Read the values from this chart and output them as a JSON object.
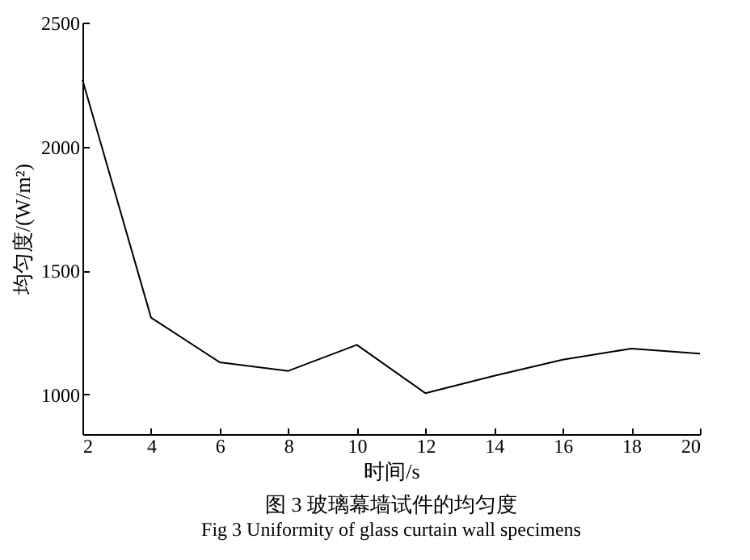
{
  "chart_data": {
    "type": "line",
    "title": "图 3 玻璃幕墙试件的均匀度",
    "subtitle": "Fig 3 Uniformity of glass curtain wall specimens",
    "xlabel": "时间/s",
    "ylabel": "均匀度/(W/m²)",
    "x": [
      2,
      4,
      6,
      8,
      10,
      12,
      14,
      16,
      18,
      20
    ],
    "series": [
      {
        "color": "#000000",
        "values": [
          2270,
          1310,
          1130,
          1095,
          1200,
          1005,
          1075,
          1140,
          1185,
          1165
        ]
      }
    ],
    "xlim": [
      2,
      20
    ],
    "xticks": [
      2,
      4,
      6,
      8,
      10,
      12,
      14,
      16,
      18,
      20
    ],
    "ylim": [
      840,
      2500
    ],
    "yticks": [
      1000,
      1500,
      2000,
      2500
    ],
    "grid": false,
    "marker": "none",
    "line_style": "solid"
  }
}
